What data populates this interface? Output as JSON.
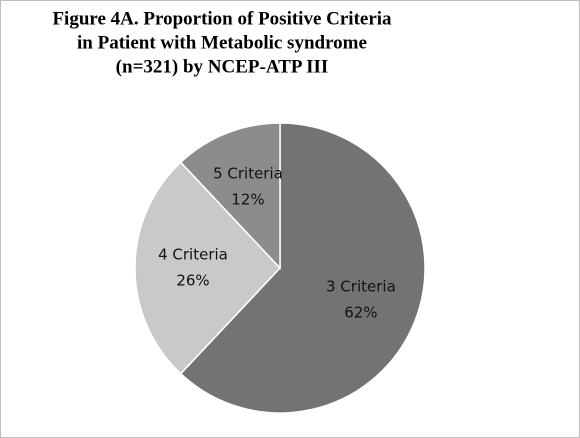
{
  "chart_data": {
    "type": "pie",
    "title": [
      "Figure 4A. Proportion of Positive Criteria",
      "in Patient  with Metabolic syndrome",
      "(n=321) by  NCEP-ATP III"
    ],
    "categories": [
      "3 Criteria",
      "4 Criteria",
      "5 Criteria"
    ],
    "values": [
      62,
      26,
      12
    ],
    "value_labels": [
      "62%",
      "26%",
      "12%"
    ],
    "colors": [
      "#737373",
      "#c9c9c9",
      "#8c8c8c"
    ]
  }
}
